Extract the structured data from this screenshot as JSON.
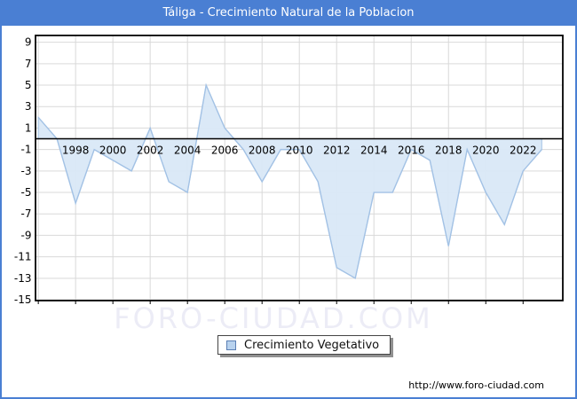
{
  "window": {
    "title": "Táliga - Crecimiento Natural de la Poblacion"
  },
  "chart_data": {
    "type": "area",
    "title": "Táliga - Crecimiento Natural de la Poblacion",
    "series": [
      {
        "name": "Crecimiento Vegetativo",
        "x": [
          1996,
          1997,
          1998,
          1999,
          2000,
          2001,
          2002,
          2003,
          2004,
          2005,
          2006,
          2007,
          2008,
          2009,
          2010,
          2011,
          2012,
          2013,
          2014,
          2015,
          2016,
          2017,
          2018,
          2019,
          2020,
          2021,
          2022,
          2023
        ],
        "values": [
          2,
          0,
          -6,
          -1,
          -2,
          -3,
          1,
          -4,
          -5,
          5,
          1,
          -1,
          -4,
          -1,
          -1,
          -4,
          -12,
          -13,
          -5,
          -5,
          -1,
          -2,
          -10,
          -1,
          -5,
          -8,
          -3,
          -1
        ]
      }
    ],
    "xlim": [
      1995.85,
      2024.13
    ],
    "ylim": [
      -15.08,
      9.63
    ],
    "x_tick_years": [
      1998,
      2000,
      2002,
      2004,
      2006,
      2008,
      2010,
      2012,
      2014,
      2016,
      2018,
      2020,
      2022
    ],
    "x_grid_years": [
      1996,
      1998,
      2000,
      2002,
      2004,
      2006,
      2008,
      2010,
      2012,
      2014,
      2016,
      2018,
      2020,
      2022
    ],
    "y_ticks": [
      9,
      7,
      5,
      3,
      1,
      -1,
      -3,
      -5,
      -7,
      -9,
      -11,
      -13,
      -15
    ],
    "grid": true,
    "zero_line": true,
    "legend_position": "bottom-center",
    "colors": {
      "fill": "#d9e8f7",
      "line": "#a3c2e5",
      "grid": "#d9d9d9",
      "axis": "#000000",
      "title_bar": "#4a7fd3",
      "watermark": "#ececf6",
      "legend_swatch": "#b8d2ee"
    }
  },
  "legend": {
    "label": "Crecimiento Vegetativo"
  },
  "watermark": "FORO-CIUDAD.COM",
  "footer": {
    "url": "http://www.foro-ciudad.com"
  }
}
